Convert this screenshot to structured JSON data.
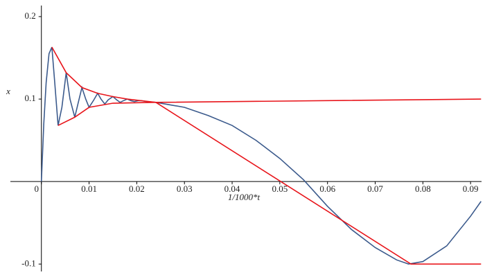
{
  "chart_data": {
    "type": "line",
    "x_label": "1/1000*t",
    "y_label": "x",
    "xlim": [
      -0.0065,
      0.0923
    ],
    "ylim": [
      -0.109,
      0.2134
    ],
    "xticks": [
      0,
      0.01,
      0.02,
      0.03,
      0.04,
      0.05,
      0.06,
      0.07,
      0.08,
      0.09
    ],
    "yticks": [
      -0.1,
      0.1,
      0.2
    ],
    "series": [
      {
        "color": "#3b5a8c",
        "x": [
          0,
          0.0005,
          0.001,
          0.0016,
          0.0022,
          0.0028,
          0.0035,
          0.0043,
          0.0052,
          0.006,
          0.007,
          0.0077,
          0.0085,
          0.0093,
          0.01,
          0.011,
          0.0118,
          0.0125,
          0.0133,
          0.014,
          0.015,
          0.0158,
          0.0165,
          0.0172,
          0.018,
          0.0188,
          0.0195,
          0.0203,
          0.021,
          0.022,
          0.024,
          0.027,
          0.03,
          0.035,
          0.04,
          0.045,
          0.05,
          0.055,
          0.06,
          0.065,
          0.07,
          0.0745,
          0.077,
          0.08,
          0.085,
          0.09,
          0.0922
        ],
        "values": [
          0,
          0.07,
          0.12,
          0.155,
          0.163,
          0.12,
          0.068,
          0.09,
          0.132,
          0.1,
          0.078,
          0.095,
          0.114,
          0.1,
          0.09,
          0.099,
          0.107,
          0.1,
          0.094,
          0.099,
          0.103,
          0.099,
          0.096,
          0.098,
          0.1,
          0.098,
          0.097,
          0.098,
          0.098,
          0.097,
          0.096,
          0.093,
          0.09,
          0.08,
          0.068,
          0.05,
          0.028,
          0.002,
          -0.03,
          -0.058,
          -0.08,
          -0.095,
          -0.1,
          -0.097,
          -0.078,
          -0.042,
          -0.024
        ]
      },
      {
        "color": "#e8141a",
        "x": [
          0.0022,
          0.0052,
          0.0085,
          0.0118,
          0.015,
          0.018,
          0.024,
          0.0922
        ],
        "values": [
          0.163,
          0.132,
          0.114,
          0.107,
          0.103,
          0.1,
          0.096,
          0.1
        ]
      },
      {
        "color": "#e8141a",
        "x": [
          0.0035,
          0.007,
          0.01,
          0.015,
          0.024
        ],
        "values": [
          0.068,
          0.078,
          0.09,
          0.095,
          0.096
        ]
      },
      {
        "color": "#e8141a",
        "x": [
          0.024,
          0.0775,
          0.0922
        ],
        "values": [
          0.096,
          -0.1,
          -0.1
        ]
      }
    ]
  }
}
